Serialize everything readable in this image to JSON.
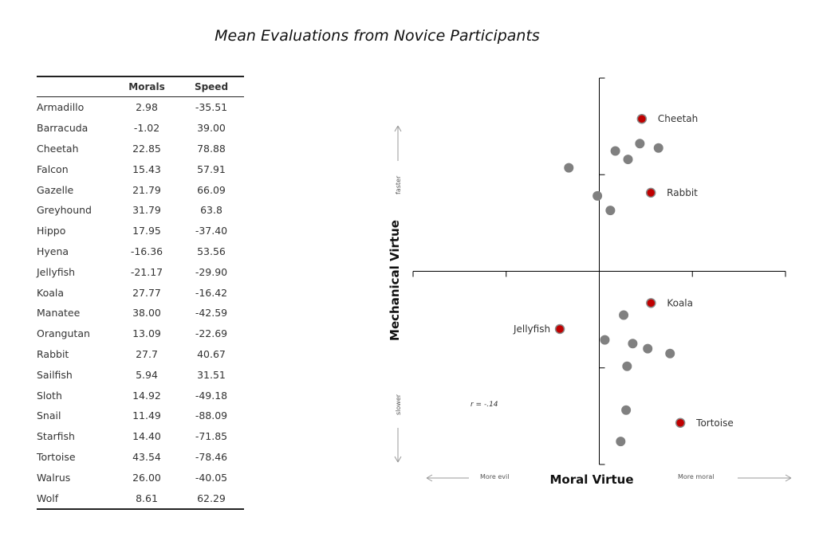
{
  "title": "Mean Evaluations from Novice Participants",
  "table": {
    "headers": [
      "",
      "Morals",
      "Speed"
    ],
    "rows": [
      [
        "Armadillo",
        "2.98",
        "-35.51"
      ],
      [
        "Barracuda",
        "-1.02",
        "39.00"
      ],
      [
        "Cheetah",
        "22.85",
        "78.88"
      ],
      [
        "Falcon",
        "15.43",
        "57.91"
      ],
      [
        "Gazelle",
        "21.79",
        "66.09"
      ],
      [
        "Greyhound",
        "31.79",
        "63.8"
      ],
      [
        "Hippo",
        "17.95",
        "-37.40"
      ],
      [
        "Hyena",
        "-16.36",
        "53.56"
      ],
      [
        "Jellyfish",
        "-21.17",
        "-29.90"
      ],
      [
        "Koala",
        "27.77",
        "-16.42"
      ],
      [
        "Manatee",
        "38.00",
        "-42.59"
      ],
      [
        "Orangutan",
        "13.09",
        "-22.69"
      ],
      [
        "Rabbit",
        "27.7",
        "40.67"
      ],
      [
        "Sailfish",
        "5.94",
        "31.51"
      ],
      [
        "Sloth",
        "14.92",
        "-49.18"
      ],
      [
        "Snail",
        "11.49",
        "-88.09"
      ],
      [
        "Starfish",
        "14.40",
        "-71.85"
      ],
      [
        "Tortoise",
        "43.54",
        "-78.46"
      ],
      [
        "Walrus",
        "26.00",
        "-40.05"
      ],
      [
        "Wolf",
        "8.61",
        "62.29"
      ]
    ]
  },
  "chart_data": {
    "type": "scatter",
    "xlabel": "Moral Virtue",
    "ylabel": "Mechanical Virtue",
    "xlim": [
      -100,
      100
    ],
    "ylim": [
      -100,
      100
    ],
    "annotation": "r = -.14",
    "direction_labels": {
      "left": "More evil",
      "right": "More moral",
      "up": "faster",
      "down": "slower"
    },
    "colors": {
      "point": "#808080",
      "highlight": "#c00000",
      "axis": "#000000",
      "arrow": "#999999"
    },
    "points": [
      {
        "name": "Armadillo",
        "x": 2.98,
        "y": -35.51
      },
      {
        "name": "Barracuda",
        "x": -1.02,
        "y": 39.0
      },
      {
        "name": "Cheetah",
        "x": 22.85,
        "y": 78.88,
        "label": "Cheetah"
      },
      {
        "name": "Falcon",
        "x": 15.43,
        "y": 57.91
      },
      {
        "name": "Gazelle",
        "x": 21.79,
        "y": 66.09
      },
      {
        "name": "Greyhound",
        "x": 31.79,
        "y": 63.8
      },
      {
        "name": "Hippo",
        "x": 17.95,
        "y": -37.4
      },
      {
        "name": "Hyena",
        "x": -16.36,
        "y": 53.56
      },
      {
        "name": "Jellyfish",
        "x": -21.17,
        "y": -29.9,
        "label": "Jellyfish"
      },
      {
        "name": "Koala",
        "x": 27.77,
        "y": -16.42,
        "label": "Koala"
      },
      {
        "name": "Manatee",
        "x": 38.0,
        "y": -42.59
      },
      {
        "name": "Orangutan",
        "x": 13.09,
        "y": -22.69
      },
      {
        "name": "Rabbit",
        "x": 27.7,
        "y": 40.67,
        "label": "Rabbit"
      },
      {
        "name": "Sailfish",
        "x": 5.94,
        "y": 31.51
      },
      {
        "name": "Sloth",
        "x": 14.92,
        "y": -49.18
      },
      {
        "name": "Snail",
        "x": 11.49,
        "y": -88.09
      },
      {
        "name": "Starfish",
        "x": 14.4,
        "y": -71.85
      },
      {
        "name": "Tortoise",
        "x": 43.54,
        "y": -78.46,
        "label": "Tortoise"
      },
      {
        "name": "Walrus",
        "x": 26.0,
        "y": -40.05
      },
      {
        "name": "Wolf",
        "x": 8.61,
        "y": 62.29
      }
    ]
  }
}
